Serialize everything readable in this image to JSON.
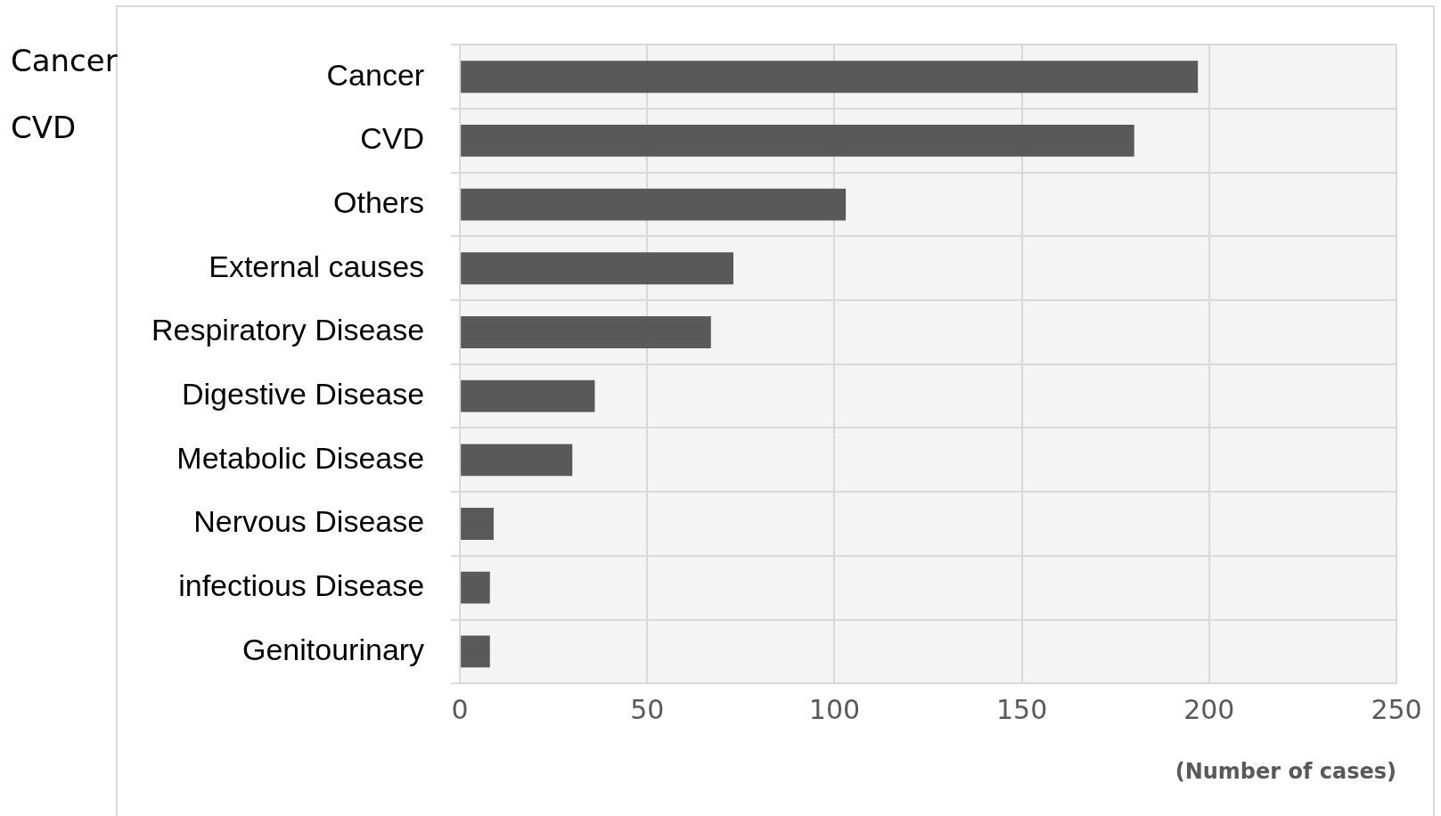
{
  "chart_data": {
    "type": "bar",
    "orientation": "horizontal",
    "xlabel": "(Number of cases)",
    "categories": [
      "Cancer",
      "CVD",
      "Others",
      "External causes",
      "Respiratory Disease",
      "Digestive Disease",
      "Metabolic Disease",
      "Nervous Disease",
      "infectious Disease",
      "Genitourinary"
    ],
    "values": [
      197,
      180,
      103,
      73,
      67,
      36,
      30,
      9,
      8,
      8
    ],
    "color": "#595959",
    "xlim": [
      0,
      250
    ],
    "xticks": [
      0,
      50,
      100,
      150,
      200,
      250
    ],
    "grid": true,
    "legend": false,
    "annotations": [
      "Cancer",
      "CVD"
    ]
  }
}
